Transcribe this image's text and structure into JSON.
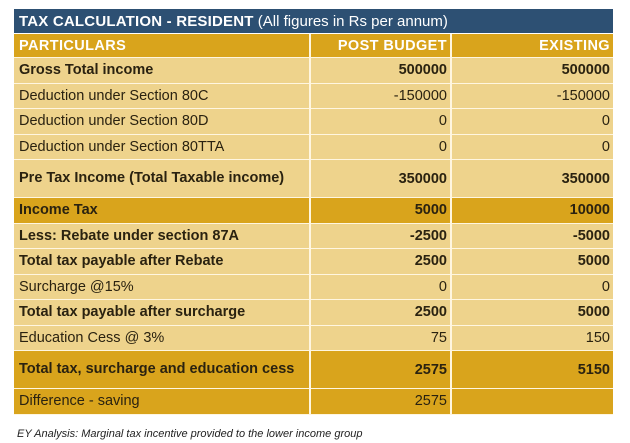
{
  "title": {
    "bold": "TAX CALCULATION - RESIDENT",
    "note": " (All figures in Rs per annum)"
  },
  "headers": [
    "PARTICULARS",
    "POST BUDGET",
    "EXISTING"
  ],
  "rows": [
    {
      "label": "Gross Total income",
      "post_budget": "500000",
      "existing": "500000",
      "bold": true,
      "highlight": false
    },
    {
      "label": "Deduction under Section 80C",
      "post_budget": "-150000",
      "existing": "-150000",
      "bold": false,
      "highlight": false
    },
    {
      "label": "Deduction under Section 80D",
      "post_budget": "0",
      "existing": "0",
      "bold": false,
      "highlight": false
    },
    {
      "label": "Deduction under Section 80TTA",
      "post_budget": "0",
      "existing": "0",
      "bold": false,
      "highlight": false
    },
    {
      "label": "Pre Tax Income (Total Taxable income)",
      "post_budget": "350000",
      "existing": "350000",
      "bold": true,
      "highlight": false,
      "tall": true
    },
    {
      "label": "Income Tax",
      "post_budget": "5000",
      "existing": "10000",
      "bold": true,
      "highlight": true
    },
    {
      "label": "Less: Rebate under section 87A",
      "post_budget": "-2500",
      "existing": "-5000",
      "bold": true,
      "highlight": false
    },
    {
      "label": "Total tax payable after Rebate",
      "post_budget": "2500",
      "existing": "5000",
      "bold": true,
      "highlight": false
    },
    {
      "label": "Surcharge @15%",
      "post_budget": "0",
      "existing": "0",
      "bold": false,
      "highlight": false
    },
    {
      "label": "Total tax payable after surcharge",
      "post_budget": "2500",
      "existing": "5000",
      "bold": true,
      "highlight": false
    },
    {
      "label": "Education Cess @ 3%",
      "post_budget": "75",
      "existing": "150",
      "bold": false,
      "highlight": false
    },
    {
      "label": "Total tax, surcharge and education cess",
      "post_budget": "2575",
      "existing": "5150",
      "bold": true,
      "highlight": true,
      "tall": true
    },
    {
      "label": "Difference - saving",
      "post_budget": "2575",
      "existing": "",
      "bold": false,
      "highlight": true
    }
  ],
  "caption": "EY Analysis: Marginal tax incentive provided to the lower income group"
}
